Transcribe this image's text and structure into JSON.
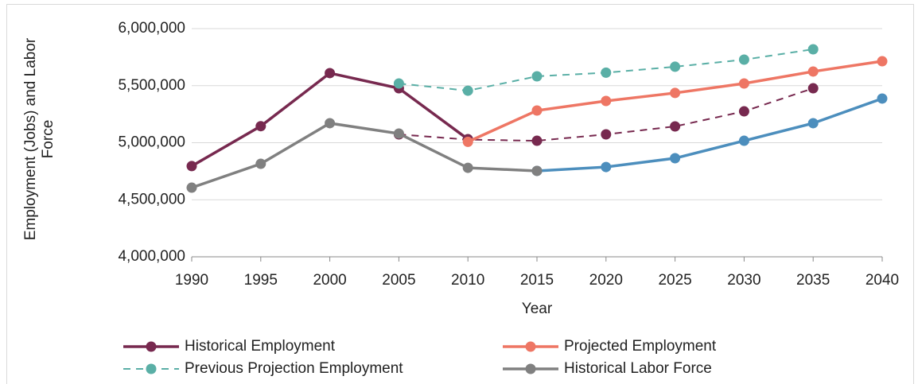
{
  "chart_data": {
    "type": "line",
    "x_label": "Year",
    "y_label": "Employment (Jobs) and Labor Force",
    "x": [
      1990,
      1995,
      2000,
      2005,
      2010,
      2015,
      2020,
      2025,
      2030,
      2035,
      2040
    ],
    "xlim": [
      1990,
      2040
    ],
    "ylim": [
      4000000,
      6000000
    ],
    "yticks": [
      {
        "value": 4000000,
        "label": "4,000,000"
      },
      {
        "value": 4500000,
        "label": "4,500,000"
      },
      {
        "value": 5000000,
        "label": "5,000,000"
      },
      {
        "value": 5500000,
        "label": "5,500,000"
      },
      {
        "value": 6000000,
        "label": "6,000,000"
      }
    ],
    "grid": true,
    "legend": "bottom",
    "series": [
      {
        "name": "Historical Employment",
        "color": "#77294f",
        "dashed": false,
        "values": [
          4795000,
          5145000,
          5610000,
          5477000,
          5031000,
          null,
          null,
          null,
          null,
          null,
          null
        ]
      },
      {
        "name": "Projected Employment",
        "color": "#ee7664",
        "dashed": false,
        "values": [
          null,
          null,
          null,
          null,
          5008000,
          5282000,
          5366000,
          5436000,
          5519000,
          5624000,
          5714000
        ]
      },
      {
        "name": "Previous Projection Employment",
        "color": "#5aafa6",
        "dashed": true,
        "values": [
          null,
          null,
          null,
          5519000,
          5456000,
          5582000,
          5614000,
          5666000,
          5728000,
          5819000,
          null
        ]
      },
      {
        "name": "Historical Labor Force",
        "color": "#808080",
        "dashed": false,
        "values": [
          4606000,
          4815000,
          5171000,
          5080000,
          4780000,
          4753000,
          null,
          null,
          null,
          null,
          null
        ]
      },
      {
        "color": "#77294f",
        "dashed": true,
        "values": [
          null,
          null,
          null,
          5073000,
          5027000,
          5017000,
          5073000,
          5143000,
          5275000,
          5477000,
          null
        ]
      },
      {
        "color": "#4c8ebd",
        "dashed": false,
        "values": [
          null,
          null,
          null,
          null,
          null,
          4753000,
          4787000,
          4864000,
          5017000,
          5171000,
          5387000
        ]
      }
    ]
  }
}
